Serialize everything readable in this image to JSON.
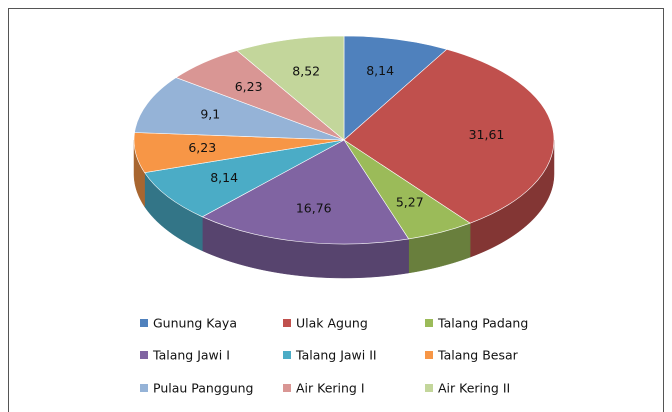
{
  "chart_data": {
    "type": "pie3d",
    "categories": [
      "Gunung Kaya",
      "Ulak Agung",
      "Talang Padang",
      "Talang Jawi I",
      "Talang Jawi II",
      "Talang Besar",
      "Pulau Panggung",
      "Air Kering I",
      "Air Kering II"
    ],
    "values": [
      8.14,
      31.61,
      5.27,
      16.76,
      8.14,
      6.23,
      9.1,
      6.23,
      8.52
    ],
    "value_labels": [
      "8,14",
      "31,61",
      "5,27",
      "16,76",
      "8,14",
      "6,23",
      "9,1",
      "6,23",
      "8,52"
    ],
    "colors": [
      "#4f81bd",
      "#c0504d",
      "#9bbb59",
      "#8064a2",
      "#4bacc6",
      "#f79646",
      "#95b3d7",
      "#d99694",
      "#c3d69b"
    ],
    "legend": "bottom"
  }
}
